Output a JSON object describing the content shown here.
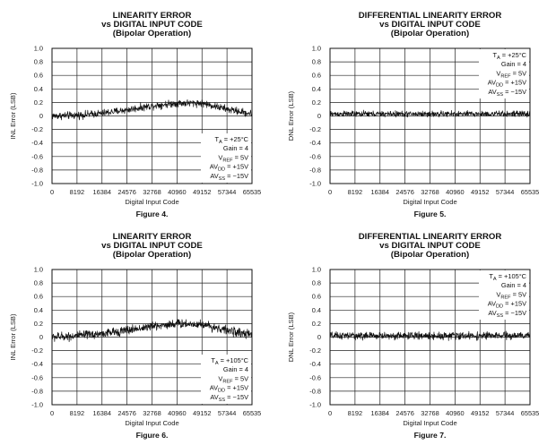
{
  "chart_data": [
    {
      "type": "line",
      "title": [
        "LINEARITY ERROR",
        "vs DIGITAL INPUT CODE",
        "(Bipolar Operation)"
      ],
      "xlabel": "Digital Input Code",
      "ylabel": "INL Error (LSB)",
      "xticks": [
        "0",
        "8192",
        "16384",
        "24576",
        "32768",
        "40960",
        "49152",
        "57344",
        "65535"
      ],
      "yticks": [
        "1.0",
        "0.8",
        "0.6",
        "0.4",
        "0.2",
        "0",
        "-0.2",
        "-0.4",
        "-0.6",
        "-0.8",
        "-1.0"
      ],
      "xlim": [
        0,
        65535
      ],
      "ylim": [
        -1.0,
        1.0
      ],
      "grid": true,
      "figure_label": "Figure 4.",
      "annotation": {
        "lines": [
          "T_A = +25°C",
          "Gain = 4",
          "V_REF = 5V",
          "AV_DD = +15V",
          "AV_SS = −15V"
        ],
        "position": "bottom-right"
      },
      "series": [
        {
          "x": [
            0,
            8192,
            16384,
            24576,
            32768,
            40960,
            49152,
            57344,
            65535
          ],
          "y": [
            0.0,
            0.01,
            0.04,
            0.09,
            0.15,
            0.19,
            0.19,
            0.1,
            0.03
          ],
          "noise": 0.05
        }
      ]
    },
    {
      "type": "line",
      "title": [
        "DIFFERENTIAL LINEARITY ERROR",
        "vs DIGITAL INPUT CODE",
        "(Bipolar Operation)"
      ],
      "xlabel": "Digital Input Code",
      "ylabel": "DNL Error (LSB)",
      "xticks": [
        "0",
        "8192",
        "16384",
        "24576",
        "32768",
        "40960",
        "49152",
        "57344",
        "65535"
      ],
      "yticks": [
        "1.0",
        "0.8",
        "0.6",
        "0.4",
        "0.2",
        "0",
        "-0.2",
        "-0.4",
        "-0.6",
        "-0.8",
        "-1.0"
      ],
      "xlim": [
        0,
        65535
      ],
      "ylim": [
        -1.0,
        1.0
      ],
      "grid": true,
      "figure_label": "Figure 5.",
      "annotation": {
        "lines": [
          "T_A = +25°C",
          "Gain = 4",
          "V_REF = 5V",
          "AV_DD = +15V",
          "AV_SS = −15V"
        ],
        "position": "top-right"
      },
      "series": [
        {
          "x": [
            0,
            8192,
            16384,
            24576,
            32768,
            40960,
            49152,
            57344,
            65535
          ],
          "y": [
            0.03,
            0.03,
            0.03,
            0.03,
            0.03,
            0.03,
            0.03,
            0.03,
            0.03
          ],
          "noise": 0.04
        }
      ]
    },
    {
      "type": "line",
      "title": [
        "LINEARITY ERROR",
        "vs DIGITAL INPUT CODE",
        "(Bipolar Operation)"
      ],
      "xlabel": "Digital Input Code",
      "ylabel": "INL Error (LSB)",
      "xticks": [
        "0",
        "8192",
        "16384",
        "24576",
        "32768",
        "40960",
        "49152",
        "57344",
        "65535"
      ],
      "yticks": [
        "1.0",
        "0.8",
        "0.6",
        "0.4",
        "0.2",
        "0",
        "-0.2",
        "-0.4",
        "-0.6",
        "-0.8",
        "-1.0"
      ],
      "xlim": [
        0,
        65535
      ],
      "ylim": [
        -1.0,
        1.0
      ],
      "grid": true,
      "figure_label": "Figure 6.",
      "annotation": {
        "lines": [
          "T_A = +105°C",
          "Gain = 4",
          "V_REF = 5V",
          "AV_DD = +15V",
          "AV_SS = −15V"
        ],
        "position": "bottom-right"
      },
      "series": [
        {
          "x": [
            0,
            8192,
            16384,
            24576,
            32768,
            40960,
            49152,
            57344,
            65535
          ],
          "y": [
            0.0,
            0.02,
            0.05,
            0.1,
            0.16,
            0.2,
            0.19,
            0.1,
            0.03
          ],
          "noise": 0.06
        }
      ]
    },
    {
      "type": "line",
      "title": [
        "DIFFERENTIAL LINEARITY ERROR",
        "vs DIGITAL INPUT CODE",
        "(Bipolar Operation)"
      ],
      "xlabel": "Digital Input Code",
      "ylabel": "DNL Error (LSB)",
      "xticks": [
        "0",
        "8192",
        "16384",
        "24576",
        "32768",
        "40960",
        "49152",
        "57344",
        "65535"
      ],
      "yticks": [
        "1.0",
        "0.8",
        "0.6",
        "0.4",
        "0.2",
        "0",
        "-0.2",
        "-0.4",
        "-0.6",
        "-0.8",
        "-1.0"
      ],
      "xlim": [
        0,
        65535
      ],
      "ylim": [
        -1.0,
        1.0
      ],
      "grid": true,
      "figure_label": "Figure 7.",
      "annotation": {
        "lines": [
          "T_A = +105°C",
          "Gain = 4",
          "V_REF = 5V",
          "AV_DD = +15V",
          "AV_SS = −15V"
        ],
        "position": "top-right"
      },
      "series": [
        {
          "x": [
            0,
            8192,
            16384,
            24576,
            32768,
            40960,
            49152,
            57344,
            65535
          ],
          "y": [
            0.02,
            0.02,
            0.02,
            0.02,
            0.02,
            0.02,
            0.02,
            0.02,
            0.02
          ],
          "noise": 0.05
        }
      ]
    }
  ]
}
